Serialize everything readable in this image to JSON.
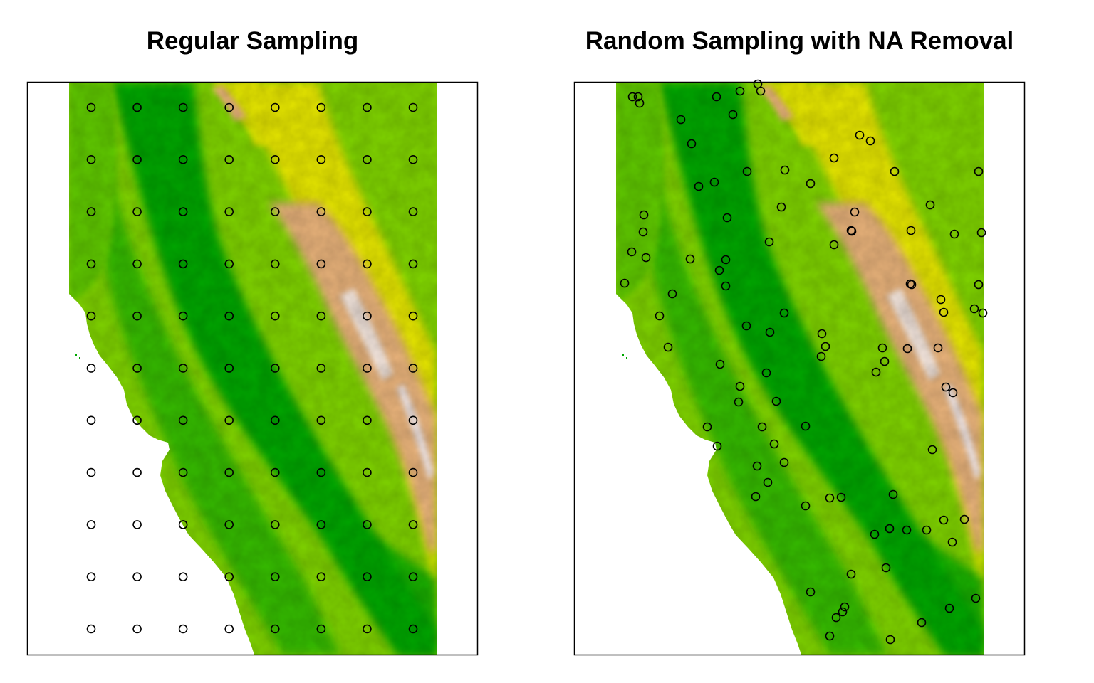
{
  "panels": [
    {
      "title": "Regular Sampling"
    },
    {
      "title": "Random Sampling with NA Removal"
    }
  ],
  "colors": {
    "low": "#00a600",
    "mid": "#7fd300",
    "high_mid": "#e6e600",
    "high": "#e8b27a",
    "peak": "#f2f2f2",
    "frame": "#000000",
    "point": "#000000"
  },
  "sampling": {
    "regular": {
      "rows": 11,
      "cols": 8
    },
    "random": {
      "count": 100
    }
  }
}
